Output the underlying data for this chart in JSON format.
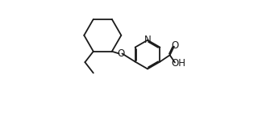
{
  "bg_color": "#ffffff",
  "line_color": "#1a1a1a",
  "line_width": 1.3,
  "font_size_atoms": 8.5,
  "figure_size": [
    3.2,
    1.5
  ],
  "dpi": 100,
  "xlim": [
    0,
    10
  ],
  "ylim": [
    0,
    10
  ]
}
